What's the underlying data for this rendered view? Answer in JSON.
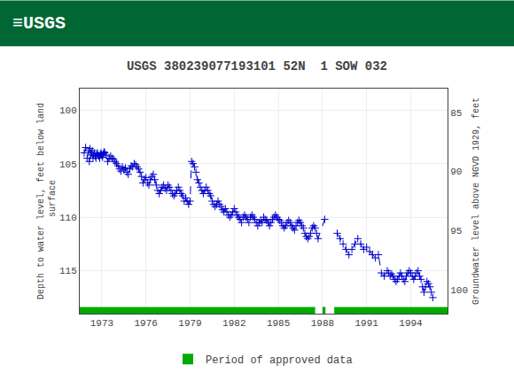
{
  "chart_data": {
    "type": "line",
    "title": "USGS 380239077193101 52N  1 SOW 032",
    "header": "≡USGS",
    "header_color": "#006633",
    "ylabel": "Depth to water level, feet below land\n surface",
    "y2label": "Groundwater level above NGVD 1929, feet",
    "x": [
      1971.8,
      1971.9,
      1972.0,
      1972.1,
      1972.15,
      1972.2,
      1972.25,
      1972.3,
      1972.35,
      1972.4,
      1972.45,
      1972.5,
      1972.55,
      1972.6,
      1972.65,
      1972.7,
      1972.75,
      1972.8,
      1972.85,
      1972.9,
      1972.95,
      1973.0,
      1973.05,
      1973.1,
      1973.15,
      1973.2,
      1973.3,
      1973.4,
      1973.5,
      1973.6,
      1973.7,
      1973.8,
      1973.9,
      1974.0,
      1974.1,
      1974.2,
      1974.3,
      1974.4,
      1974.5,
      1974.6,
      1974.7,
      1974.8,
      1974.9,
      1975.0,
      1975.1,
      1975.2,
      1975.3,
      1975.4,
      1975.5,
      1975.6,
      1975.7,
      1975.8,
      1975.9,
      1976.0,
      1976.1,
      1976.2,
      1976.3,
      1976.4,
      1976.5,
      1976.6,
      1976.7,
      1976.8,
      1976.9,
      1977.0,
      1977.1,
      1977.2,
      1977.3,
      1977.4,
      1977.5,
      1977.6,
      1977.7,
      1977.8,
      1977.9,
      1978.0,
      1978.1,
      1978.2,
      1978.3,
      1978.4,
      1978.5,
      1978.6,
      1978.7,
      1978.8,
      1978.9,
      1979.0,
      1979.1,
      1979.2,
      1979.3,
      1979.4,
      1979.5,
      1979.6,
      1979.7,
      1979.8,
      1979.9,
      1980.0,
      1980.1,
      1980.2,
      1980.3,
      1980.4,
      1980.5,
      1980.6,
      1980.7,
      1980.8,
      1980.9,
      1981.0,
      1981.1,
      1981.2,
      1981.3,
      1981.4,
      1981.5,
      1981.6,
      1981.7,
      1981.8,
      1981.9,
      1982.0,
      1982.1,
      1982.2,
      1982.3,
      1982.4,
      1982.5,
      1982.6,
      1982.7,
      1982.8,
      1982.9,
      1983.0,
      1983.1,
      1983.2,
      1983.3,
      1983.4,
      1983.5,
      1983.6,
      1983.7,
      1983.8,
      1983.9,
      1984.0,
      1984.1,
      1984.2,
      1984.3,
      1984.4,
      1984.5,
      1984.6,
      1984.7,
      1984.8,
      1984.9,
      1985.0,
      1985.1,
      1985.2,
      1985.3,
      1985.4,
      1985.5,
      1985.6,
      1985.7,
      1985.8,
      1985.9,
      1986.0,
      1986.1,
      1986.2,
      1986.3,
      1986.4,
      1986.5,
      1986.6,
      1986.7,
      1986.8,
      1986.9,
      1987.0,
      1987.1,
      1987.2,
      1987.3,
      1987.4,
      1987.5,
      1987.6,
      1987.7,
      1988.15,
      null,
      1989.0,
      1989.2,
      1989.4,
      1989.6,
      1989.8,
      1990.0,
      1990.2,
      1990.4,
      1990.6,
      1990.8,
      1991.0,
      1991.2,
      1991.4,
      1991.6,
      1991.8,
      1992.0,
      1992.2,
      1992.4,
      1992.5,
      1992.6,
      1992.7,
      1992.8,
      1992.9,
      1993.0,
      1993.1,
      1993.2,
      1993.3,
      1993.4,
      1993.5,
      1993.6,
      1993.7,
      1993.8,
      1993.9,
      1994.0,
      1994.1,
      1994.2,
      1994.3,
      1994.4,
      1994.5,
      1994.6,
      1994.7,
      1994.8,
      1994.9,
      1995.0,
      1995.1,
      1995.2,
      1995.3,
      1995.4,
      1995.5
    ],
    "values": [
      104.0,
      103.5,
      104.5,
      103.8,
      104.8,
      103.6,
      104.2,
      104.0,
      103.8,
      104.5,
      104.2,
      104.0,
      104.3,
      104.5,
      104.1,
      104.0,
      104.2,
      104.3,
      104.5,
      104.1,
      104.0,
      104.2,
      104.4,
      104.1,
      103.9,
      104.0,
      104.2,
      104.8,
      104.5,
      104.3,
      104.5,
      104.6,
      104.8,
      105.0,
      105.2,
      105.5,
      105.7,
      105.3,
      105.6,
      105.4,
      105.8,
      106.0,
      105.5,
      105.2,
      105.3,
      105.0,
      105.1,
      105.3,
      105.5,
      105.8,
      106.2,
      106.8,
      106.5,
      106.3,
      106.8,
      107.0,
      106.5,
      106.2,
      106.0,
      106.5,
      107.0,
      107.5,
      107.8,
      107.5,
      107.2,
      107.0,
      107.3,
      107.5,
      107.0,
      107.2,
      107.5,
      107.8,
      108.0,
      107.8,
      107.5,
      107.2,
      107.5,
      107.8,
      108.0,
      108.5,
      108.2,
      108.5,
      108.8,
      108.5,
      104.8,
      105.0,
      105.3,
      105.8,
      106.5,
      106.8,
      107.2,
      107.5,
      107.8,
      107.5,
      107.2,
      107.5,
      107.8,
      108.0,
      108.5,
      108.8,
      109.0,
      108.8,
      108.5,
      108.8,
      109.0,
      109.3,
      109.5,
      109.2,
      109.5,
      109.8,
      110.0,
      109.8,
      109.5,
      109.2,
      109.5,
      109.8,
      110.0,
      110.2,
      110.5,
      110.0,
      109.8,
      110.0,
      110.2,
      110.5,
      110.0,
      109.8,
      110.0,
      110.2,
      110.5,
      110.8,
      110.5,
      110.3,
      110.5,
      110.0,
      110.2,
      110.3,
      110.5,
      110.8,
      110.5,
      110.2,
      110.0,
      109.8,
      110.0,
      110.2,
      110.3,
      110.5,
      110.8,
      111.0,
      110.8,
      110.5,
      110.3,
      110.5,
      110.8,
      111.0,
      111.2,
      110.8,
      110.5,
      110.3,
      110.5,
      110.8,
      111.0,
      111.5,
      111.8,
      112.0,
      111.8,
      111.5,
      111.0,
      110.8,
      111.0,
      111.5,
      112.0,
      110.2,
      null,
      111.5,
      112.0,
      112.5,
      113.0,
      113.5,
      113.0,
      112.5,
      112.0,
      112.5,
      113.0,
      112.8,
      113.2,
      113.5,
      113.8,
      113.5,
      115.2,
      115.5,
      115.0,
      115.2,
      115.5,
      115.3,
      115.5,
      115.8,
      116.0,
      115.8,
      115.5,
      115.2,
      115.5,
      115.8,
      116.0,
      115.5,
      115.2,
      115.0,
      115.2,
      115.5,
      115.8,
      115.5,
      115.2,
      115.0,
      115.5,
      115.8,
      116.5,
      117.0,
      116.5,
      116.0,
      116.2,
      116.5,
      117.0,
      117.5
    ],
    "color": "#0000cc",
    "marker": "+",
    "line_style": "dashed",
    "xlim": [
      1971.5,
      1996.5
    ],
    "xticks": [
      1973,
      1976,
      1979,
      1982,
      1985,
      1988,
      1991,
      1994
    ],
    "ylim": [
      119,
      98
    ],
    "yticks": [
      100,
      105,
      110,
      115
    ],
    "y2lim": [
      102,
      83
    ],
    "y2ticks": [
      100,
      95,
      90,
      85
    ],
    "grid": true,
    "legend": "bottom",
    "approved_periods": {
      "name": "Period of approved data",
      "color": "#00aa00",
      "ranges": [
        [
          1971.5,
          1987.5
        ],
        [
          1988.0,
          1988.2
        ],
        [
          1988.8,
          1996.5
        ]
      ]
    }
  }
}
